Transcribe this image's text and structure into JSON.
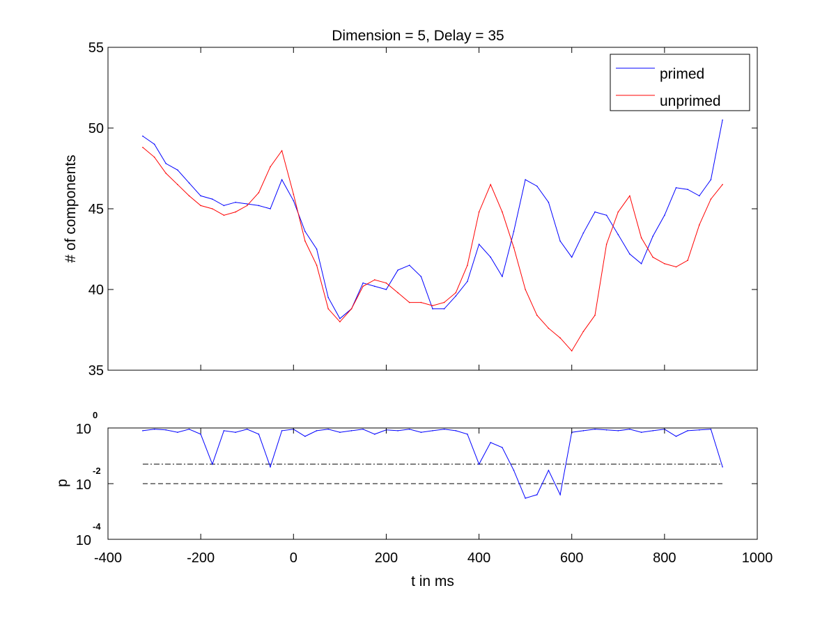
{
  "figure": {
    "colors": {
      "primed": "#0000ff",
      "unprimed": "#ff0000",
      "threshold": "#000000"
    }
  },
  "chart_data": [
    {
      "type": "line",
      "title": "Dimension  = 5, Delay = 35",
      "xlabel": "",
      "ylabel": "# of components",
      "xlim": [
        -400,
        1000
      ],
      "ylim": [
        35,
        55
      ],
      "yticks": [
        "35",
        "40",
        "45",
        "50",
        "55"
      ],
      "grid": false,
      "legend": {
        "position": "top-right",
        "entries": [
          "primed",
          "unprimed"
        ]
      },
      "x": [
        -325,
        -300,
        -275,
        -250,
        -225,
        -200,
        -175,
        -150,
        -125,
        -100,
        -75,
        -50,
        -25,
        0,
        25,
        50,
        75,
        100,
        125,
        150,
        175,
        200,
        225,
        250,
        275,
        300,
        325,
        350,
        375,
        400,
        425,
        450,
        475,
        500,
        525,
        550,
        575,
        600,
        625,
        650,
        675,
        700,
        725,
        750,
        775,
        800,
        825,
        850,
        875,
        900,
        925
      ],
      "series": [
        {
          "name": "primed",
          "values": [
            49.5,
            49.0,
            47.8,
            47.4,
            46.6,
            45.8,
            45.6,
            45.2,
            45.4,
            45.3,
            45.2,
            45.0,
            46.8,
            45.5,
            43.6,
            42.5,
            39.5,
            38.2,
            38.8,
            40.4,
            40.2,
            40.0,
            41.2,
            41.5,
            40.8,
            38.8,
            38.8,
            39.6,
            40.5,
            42.8,
            42.0,
            40.8,
            43.6,
            46.8,
            46.4,
            45.4,
            43.0,
            42.0,
            43.5,
            44.8,
            44.6,
            43.4,
            42.2,
            41.6,
            43.3,
            44.6,
            46.3,
            46.2,
            45.8,
            46.8,
            50.5
          ]
        },
        {
          "name": "unprimed",
          "values": [
            48.8,
            48.2,
            47.2,
            46.5,
            45.8,
            45.2,
            45.0,
            44.6,
            44.8,
            45.2,
            46.0,
            47.6,
            48.6,
            45.9,
            43.0,
            41.5,
            38.8,
            38.0,
            38.8,
            40.2,
            40.6,
            40.4,
            39.8,
            39.2,
            39.2,
            39.0,
            39.2,
            39.8,
            41.5,
            44.8,
            46.5,
            44.8,
            42.6,
            40.0,
            38.4,
            37.6,
            37.0,
            36.2,
            37.4,
            38.4,
            42.8,
            44.8,
            45.8,
            43.2,
            42.0,
            41.6,
            41.4,
            41.8,
            44.0,
            45.6,
            46.5
          ]
        }
      ]
    },
    {
      "type": "line",
      "title": "",
      "xlabel": "t in ms",
      "ylabel": "p",
      "xlim": [
        -400,
        1000
      ],
      "ylim": [
        0.0001,
        1
      ],
      "yscale": "log",
      "xticks": [
        "-400",
        "-200",
        "0",
        "200",
        "400",
        "600",
        "800",
        "1000"
      ],
      "yticks": [
        {
          "base": "10",
          "exp": "0"
        },
        {
          "base": "10",
          "exp": "-2"
        },
        {
          "base": "10",
          "exp": "-4"
        }
      ],
      "x": [
        -325,
        -300,
        -275,
        -250,
        -225,
        -200,
        -175,
        -150,
        -125,
        -100,
        -75,
        -50,
        -25,
        0,
        25,
        50,
        75,
        100,
        125,
        150,
        175,
        200,
        225,
        250,
        275,
        300,
        325,
        350,
        375,
        400,
        425,
        450,
        475,
        500,
        525,
        550,
        575,
        600,
        625,
        650,
        675,
        700,
        725,
        750,
        775,
        800,
        825,
        850,
        875,
        900,
        925
      ],
      "series": [
        {
          "name": "",
          "values": [
            0.8,
            0.9,
            0.85,
            0.7,
            0.9,
            0.6,
            0.05,
            0.8,
            0.7,
            0.9,
            0.6,
            0.04,
            0.8,
            0.9,
            0.5,
            0.8,
            0.9,
            0.7,
            0.8,
            0.9,
            0.6,
            0.85,
            0.8,
            0.9,
            0.7,
            0.8,
            0.9,
            0.8,
            0.6,
            0.05,
            0.3,
            0.2,
            0.03,
            0.003,
            0.004,
            0.03,
            0.004,
            0.7,
            0.8,
            0.9,
            0.85,
            0.8,
            0.9,
            0.7,
            0.8,
            0.9,
            0.5,
            0.8,
            0.85,
            0.9,
            0.04
          ]
        }
      ],
      "thresholds": [
        {
          "value": 0.05,
          "style": "dash-dot"
        },
        {
          "value": 0.01,
          "style": "dashed"
        }
      ]
    }
  ]
}
